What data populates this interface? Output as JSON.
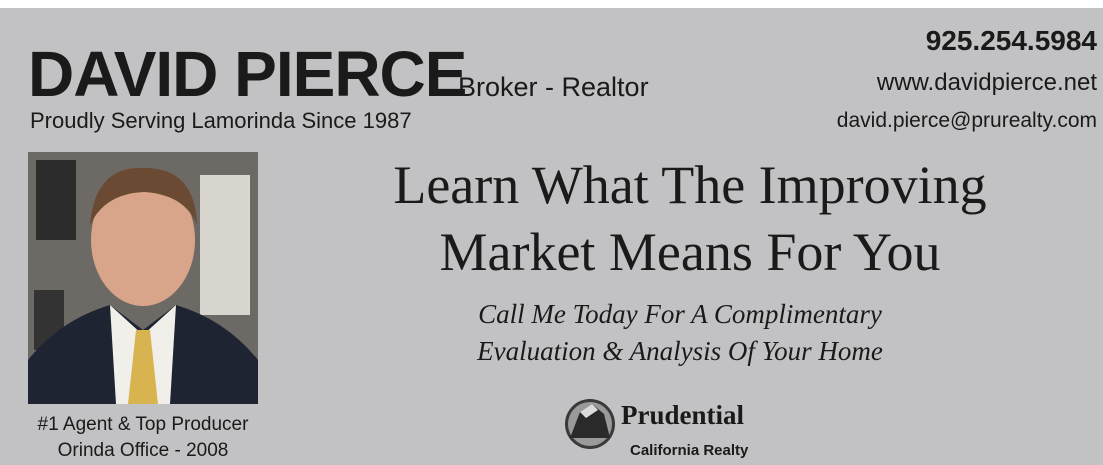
{
  "header": {
    "name": "DAVID PIERCE",
    "role": "Broker - Realtor",
    "tagline": "Proudly Serving Lamorinda Since 1987",
    "phone": "925.254.5984",
    "website": "www.davidpierce.net",
    "email": "david.pierce@prurealty.com"
  },
  "headline": {
    "lines": [
      "Learn What The Improving",
      "Market Means For You"
    ]
  },
  "subheadline": {
    "lines": [
      "Call Me Today For A Complimentary",
      "Evaluation & Analysis Of Your Home"
    ]
  },
  "photo": {
    "caption": [
      "#1 Agent & Top Producer",
      "Orinda Office - 2008"
    ]
  },
  "logo": {
    "name": "Prudential",
    "subtitle": "California Realty"
  }
}
